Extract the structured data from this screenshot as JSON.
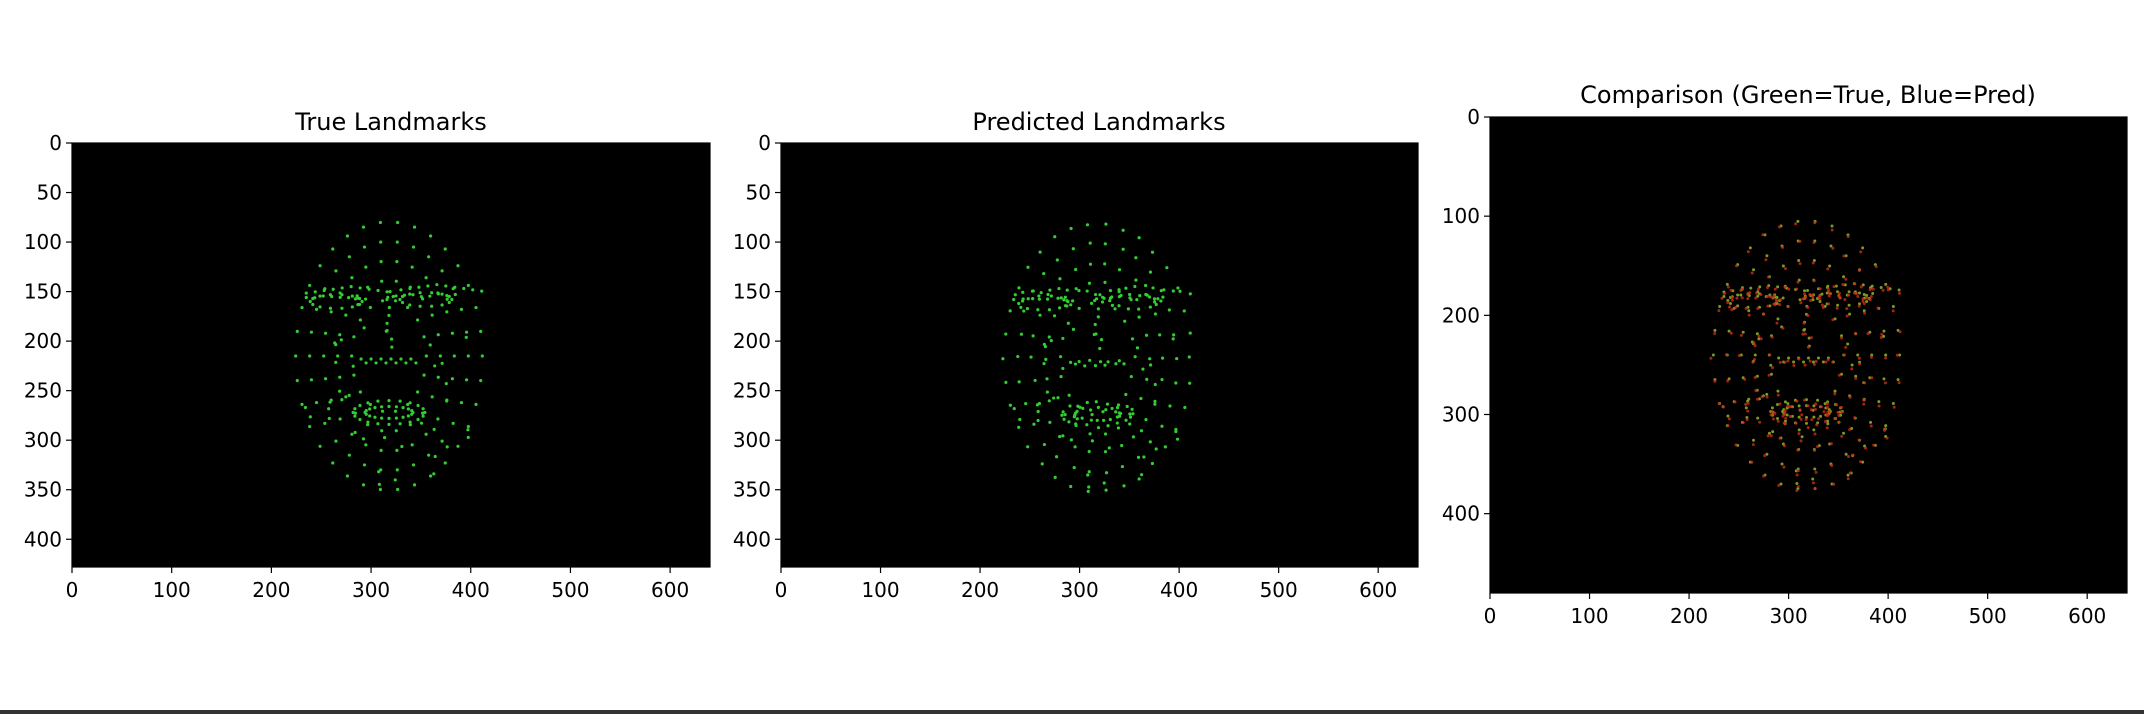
{
  "chart_data": [
    {
      "type": "scatter",
      "title": "True Landmarks",
      "xticks": [
        "0",
        "100",
        "200",
        "300",
        "400",
        "500",
        "600"
      ],
      "yticks": [
        "0",
        "50",
        "100",
        "150",
        "200",
        "250",
        "300",
        "350",
        "400"
      ],
      "xlim": [
        0,
        640
      ],
      "ylim": [
        0,
        428
      ],
      "background": "#000000",
      "point_color": "#33cc33",
      "series": [
        {
          "values": [
            [
              290,
              265
            ],
            [
              350,
              265
            ],
            [
              318,
              270
            ],
            [
              262,
              240
            ],
            [
              245,
              235
            ],
            [
              235,
              225
            ],
            [
              228,
              215
            ],
            [
              225,
              200
            ]
          ]
        }
      ]
    },
    {
      "type": "scatter",
      "title": "Predicted Landmarks",
      "xticks": [
        "0",
        "100",
        "200",
        "300",
        "400",
        "500",
        "600"
      ],
      "yticks": [
        "0",
        "50",
        "100",
        "150",
        "200",
        "250",
        "300",
        "350",
        "400"
      ],
      "xlim": [
        0,
        640
      ],
      "ylim": [
        0,
        428
      ],
      "background": "#000000",
      "point_color": "#33cc33",
      "series": [
        {
          "values": [
            [
              290,
              268
            ],
            [
              350,
              268
            ],
            [
              318,
              272
            ],
            [
              262,
              242
            ],
            [
              245,
              237
            ],
            [
              235,
              227
            ],
            [
              228,
              217
            ],
            [
              225,
              202
            ]
          ]
        }
      ]
    },
    {
      "type": "scatter",
      "title": "Comparison (Green=True, Blue=Pred)",
      "xticks": [
        "0",
        "100",
        "200",
        "300",
        "400",
        "500",
        "600"
      ],
      "yticks": [
        "0",
        "100",
        "200",
        "300",
        "400"
      ],
      "xlim": [
        0,
        640
      ],
      "ylim": [
        0,
        480
      ],
      "background": "#000000",
      "true_color": "#7a9a20",
      "pred_color": "#cc2a1a",
      "series": [
        {
          "values": [
            [
              290,
              290
            ],
            [
              350,
              290
            ],
            [
              318,
              298
            ]
          ]
        },
        {
          "values": [
            [
              292,
              293
            ],
            [
              352,
              293
            ],
            [
              320,
              301
            ]
          ]
        }
      ]
    }
  ]
}
